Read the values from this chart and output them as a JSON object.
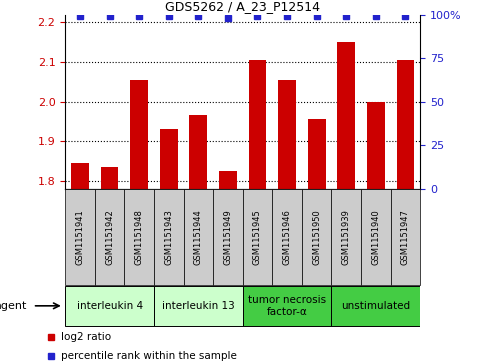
{
  "title": "GDS5262 / A_23_P12514",
  "samples": [
    "GSM1151941",
    "GSM1151942",
    "GSM1151948",
    "GSM1151943",
    "GSM1151944",
    "GSM1151949",
    "GSM1151945",
    "GSM1151946",
    "GSM1151950",
    "GSM1151939",
    "GSM1151940",
    "GSM1151947"
  ],
  "log2_values": [
    1.845,
    1.835,
    2.055,
    1.93,
    1.965,
    1.825,
    2.105,
    2.055,
    1.955,
    2.15,
    2.0,
    2.105
  ],
  "percentile_values": [
    99,
    99,
    99,
    99,
    99,
    98,
    99,
    99,
    99,
    99,
    99,
    99
  ],
  "bar_color": "#cc0000",
  "dot_color": "#2222cc",
  "ylim_left": [
    1.78,
    2.22
  ],
  "ylim_right": [
    0,
    100
  ],
  "yticks_left": [
    1.8,
    1.9,
    2.0,
    2.1,
    2.2
  ],
  "yticks_right": [
    0,
    25,
    50,
    75,
    100
  ],
  "groups": [
    {
      "label": "interleukin 4",
      "start": 0,
      "end": 2,
      "color": "#ccffcc"
    },
    {
      "label": "interleukin 13",
      "start": 3,
      "end": 5,
      "color": "#ccffcc"
    },
    {
      "label": "tumor necrosis\nfactor-α",
      "start": 6,
      "end": 8,
      "color": "#44cc44"
    },
    {
      "label": "unstimulated",
      "start": 9,
      "end": 11,
      "color": "#44cc44"
    }
  ],
  "agent_label": "agent",
  "legend_log2": "log2 ratio",
  "legend_pct": "percentile rank within the sample",
  "bar_bottom": 1.78,
  "sample_box_color": "#cccccc",
  "tick_label_color_left": "#cc0000",
  "tick_label_color_right": "#2222cc"
}
